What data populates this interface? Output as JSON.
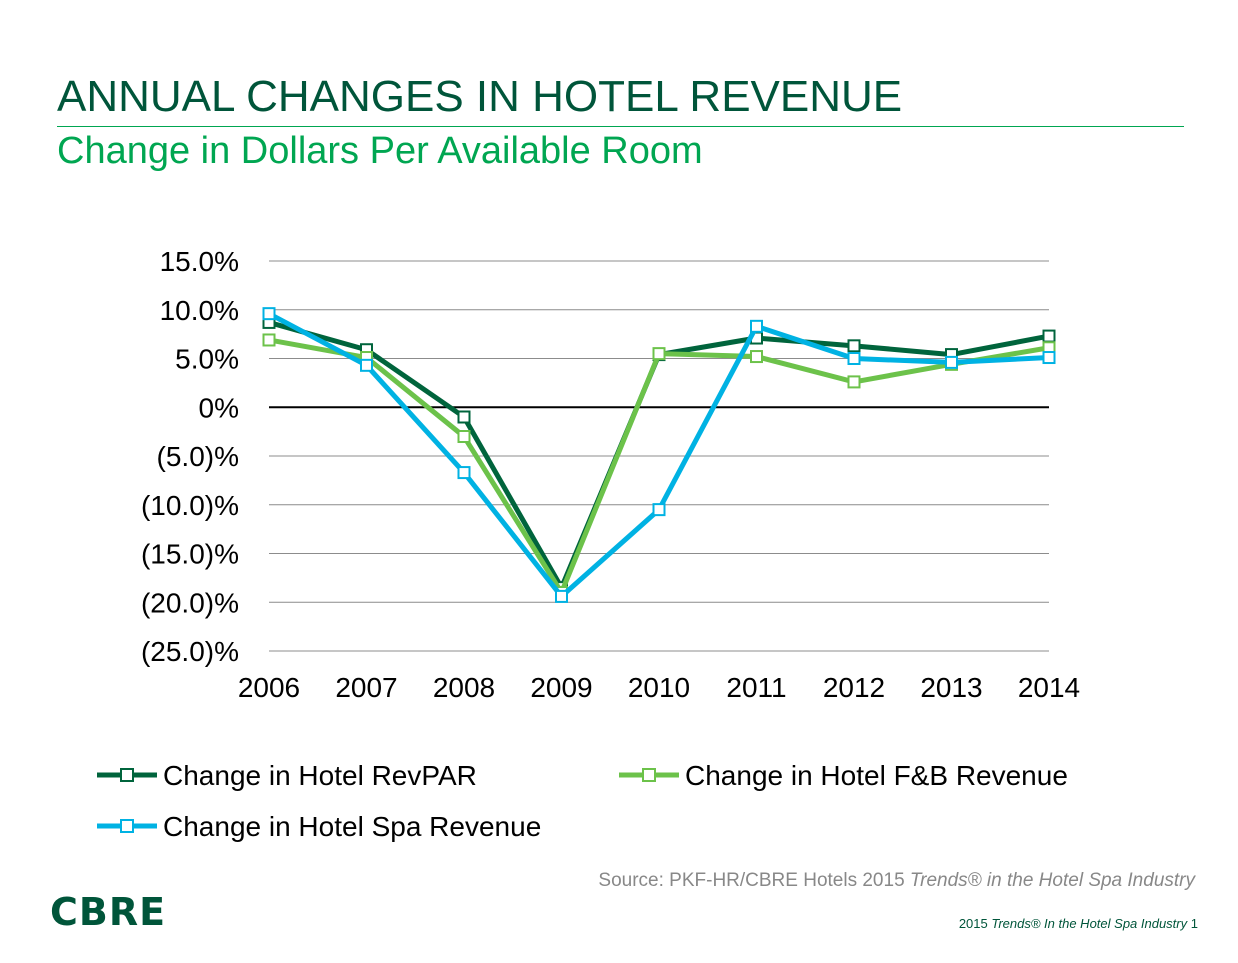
{
  "header": {
    "title": "ANNUAL CHANGES IN HOTEL REVENUE",
    "subtitle": "Change in Dollars Per Available Room"
  },
  "chart_data": {
    "type": "line",
    "title": "",
    "categories": [
      "2006",
      "2007",
      "2008",
      "2009",
      "2010",
      "2011",
      "2012",
      "2013",
      "2014"
    ],
    "ylim": [
      -25,
      15
    ],
    "yticks": [
      15,
      10,
      5,
      0,
      -5,
      -10,
      -15,
      -20,
      -25
    ],
    "ytick_labels": [
      "15.0%",
      "10.0%",
      "5.0%",
      "0%",
      "(5.0)%",
      "(10.0)%",
      "(15.0)%",
      "(20.0)%",
      "(25.0)%"
    ],
    "grid": true,
    "legend": "bottom",
    "series": [
      {
        "name": "Change in Hotel RevPAR",
        "color": "#00643c",
        "values": [
          8.7,
          5.9,
          -1.0,
          -18.5,
          5.4,
          7.1,
          6.3,
          5.4,
          7.3
        ]
      },
      {
        "name": "Change in Hotel F&B Revenue",
        "color": "#6cc24a",
        "values": [
          6.9,
          5.1,
          -3.0,
          -19.0,
          5.5,
          5.2,
          2.6,
          4.4,
          6.1
        ]
      },
      {
        "name": "Change in Hotel Spa Revenue",
        "color": "#00b2e3",
        "values": [
          9.6,
          4.3,
          -6.7,
          -19.4,
          -10.5,
          8.3,
          5.0,
          4.6,
          5.1
        ]
      }
    ]
  },
  "footer": {
    "source_prefix": "Source: PKF-HR/CBRE Hotels 2015 ",
    "source_italic": "Trends® in the Hotel Spa Industry",
    "page_prefix": "2015 ",
    "page_italic": "Trends® In the Hotel Spa Industry",
    "page_number": "1",
    "logo": "CBRE"
  }
}
